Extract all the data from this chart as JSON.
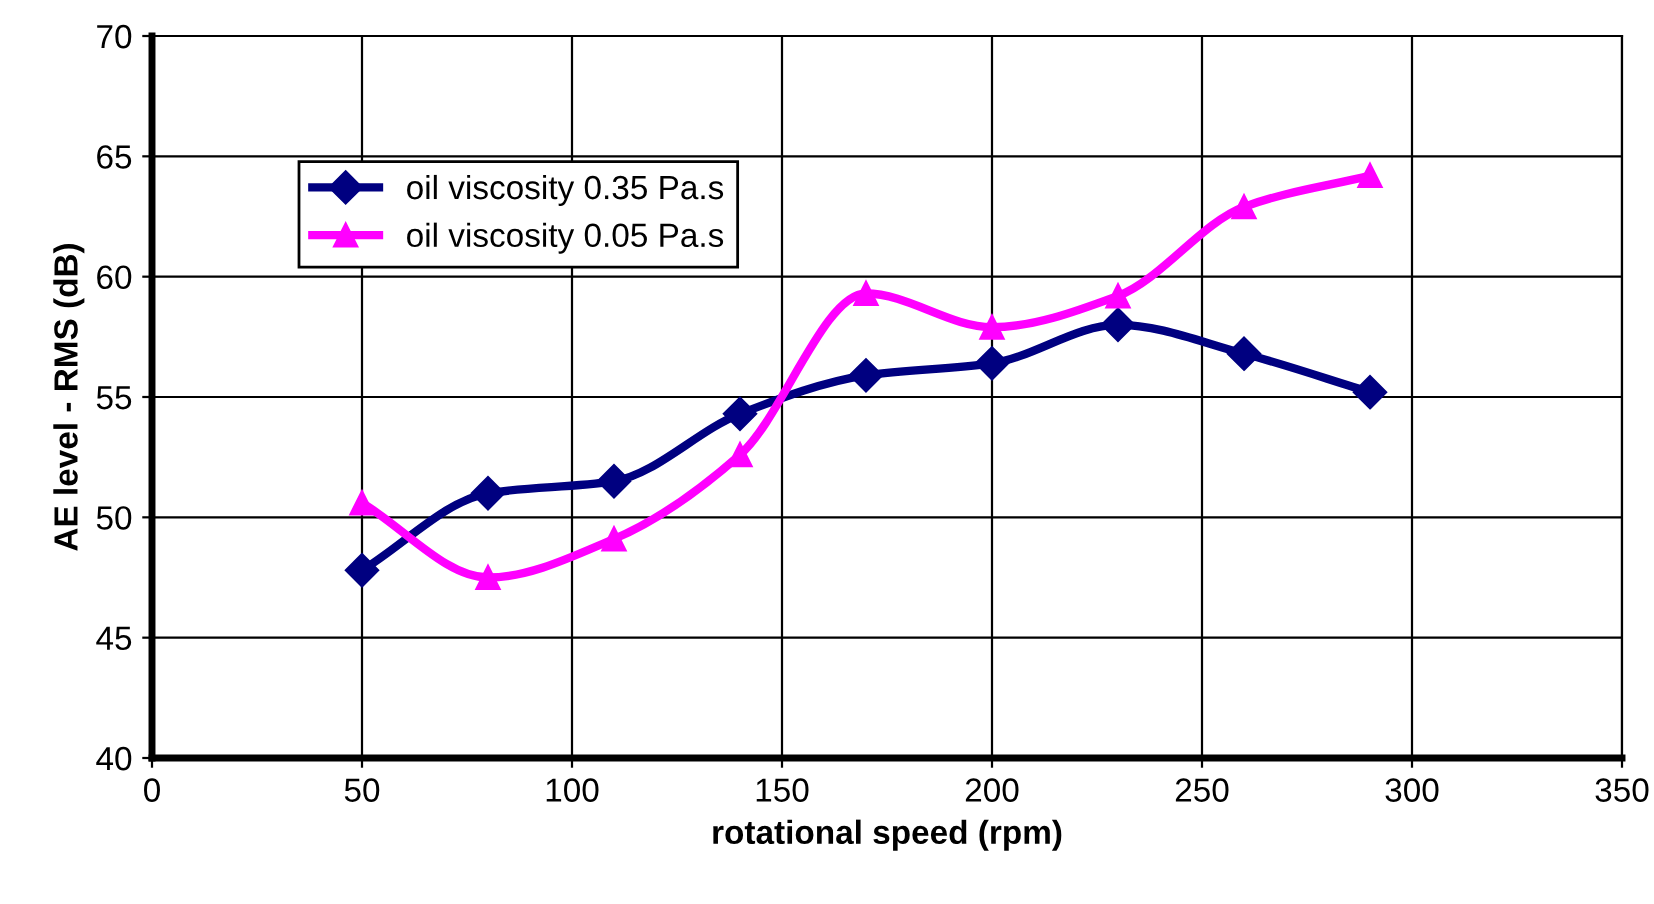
{
  "chart_data": {
    "type": "line",
    "xlabel": "rotational speed (rpm)",
    "ylabel": "AE level - RMS (dB)",
    "x": [
      50,
      80,
      110,
      140,
      170,
      200,
      230,
      260,
      290
    ],
    "series": [
      {
        "name": "oil viscosity 0.35 Pa.s",
        "color": "#000080",
        "marker": "diamond",
        "values": [
          47.8,
          51.0,
          51.5,
          54.3,
          55.9,
          56.4,
          58.0,
          56.8,
          55.2
        ]
      },
      {
        "name": "oil viscosity 0.05 Pa.s",
        "color": "#ff00ff",
        "marker": "triangle",
        "values": [
          50.6,
          47.5,
          49.1,
          52.6,
          59.3,
          57.9,
          59.2,
          62.9,
          64.2
        ]
      }
    ],
    "xlim": [
      0,
      350
    ],
    "xticks": [
      0,
      50,
      100,
      150,
      200,
      250,
      300,
      350
    ],
    "ylim": [
      40,
      70
    ],
    "yticks": [
      40,
      45,
      50,
      55,
      60,
      65,
      70
    ],
    "grid": true,
    "legend": "top left",
    "line_style": "solid"
  }
}
